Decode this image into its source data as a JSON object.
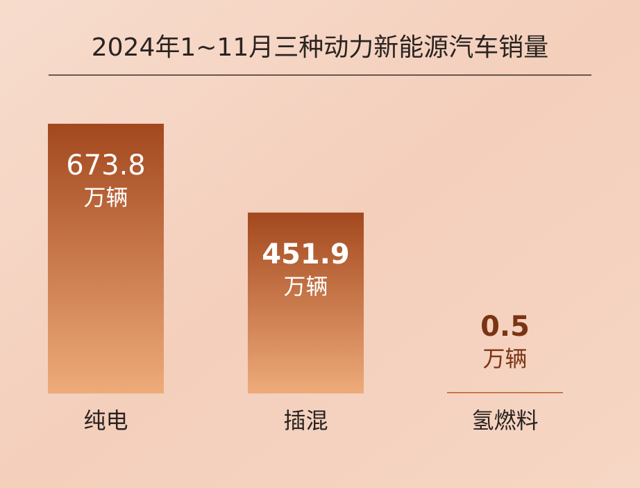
{
  "chart_data": {
    "type": "bar",
    "title": "2024年1~11月三种动力新能源汽车销量",
    "categories": [
      "纯电",
      "插混",
      "氢燃料"
    ],
    "values": [
      673.8,
      451.9,
      0.5
    ],
    "unit": "万辆"
  }
}
